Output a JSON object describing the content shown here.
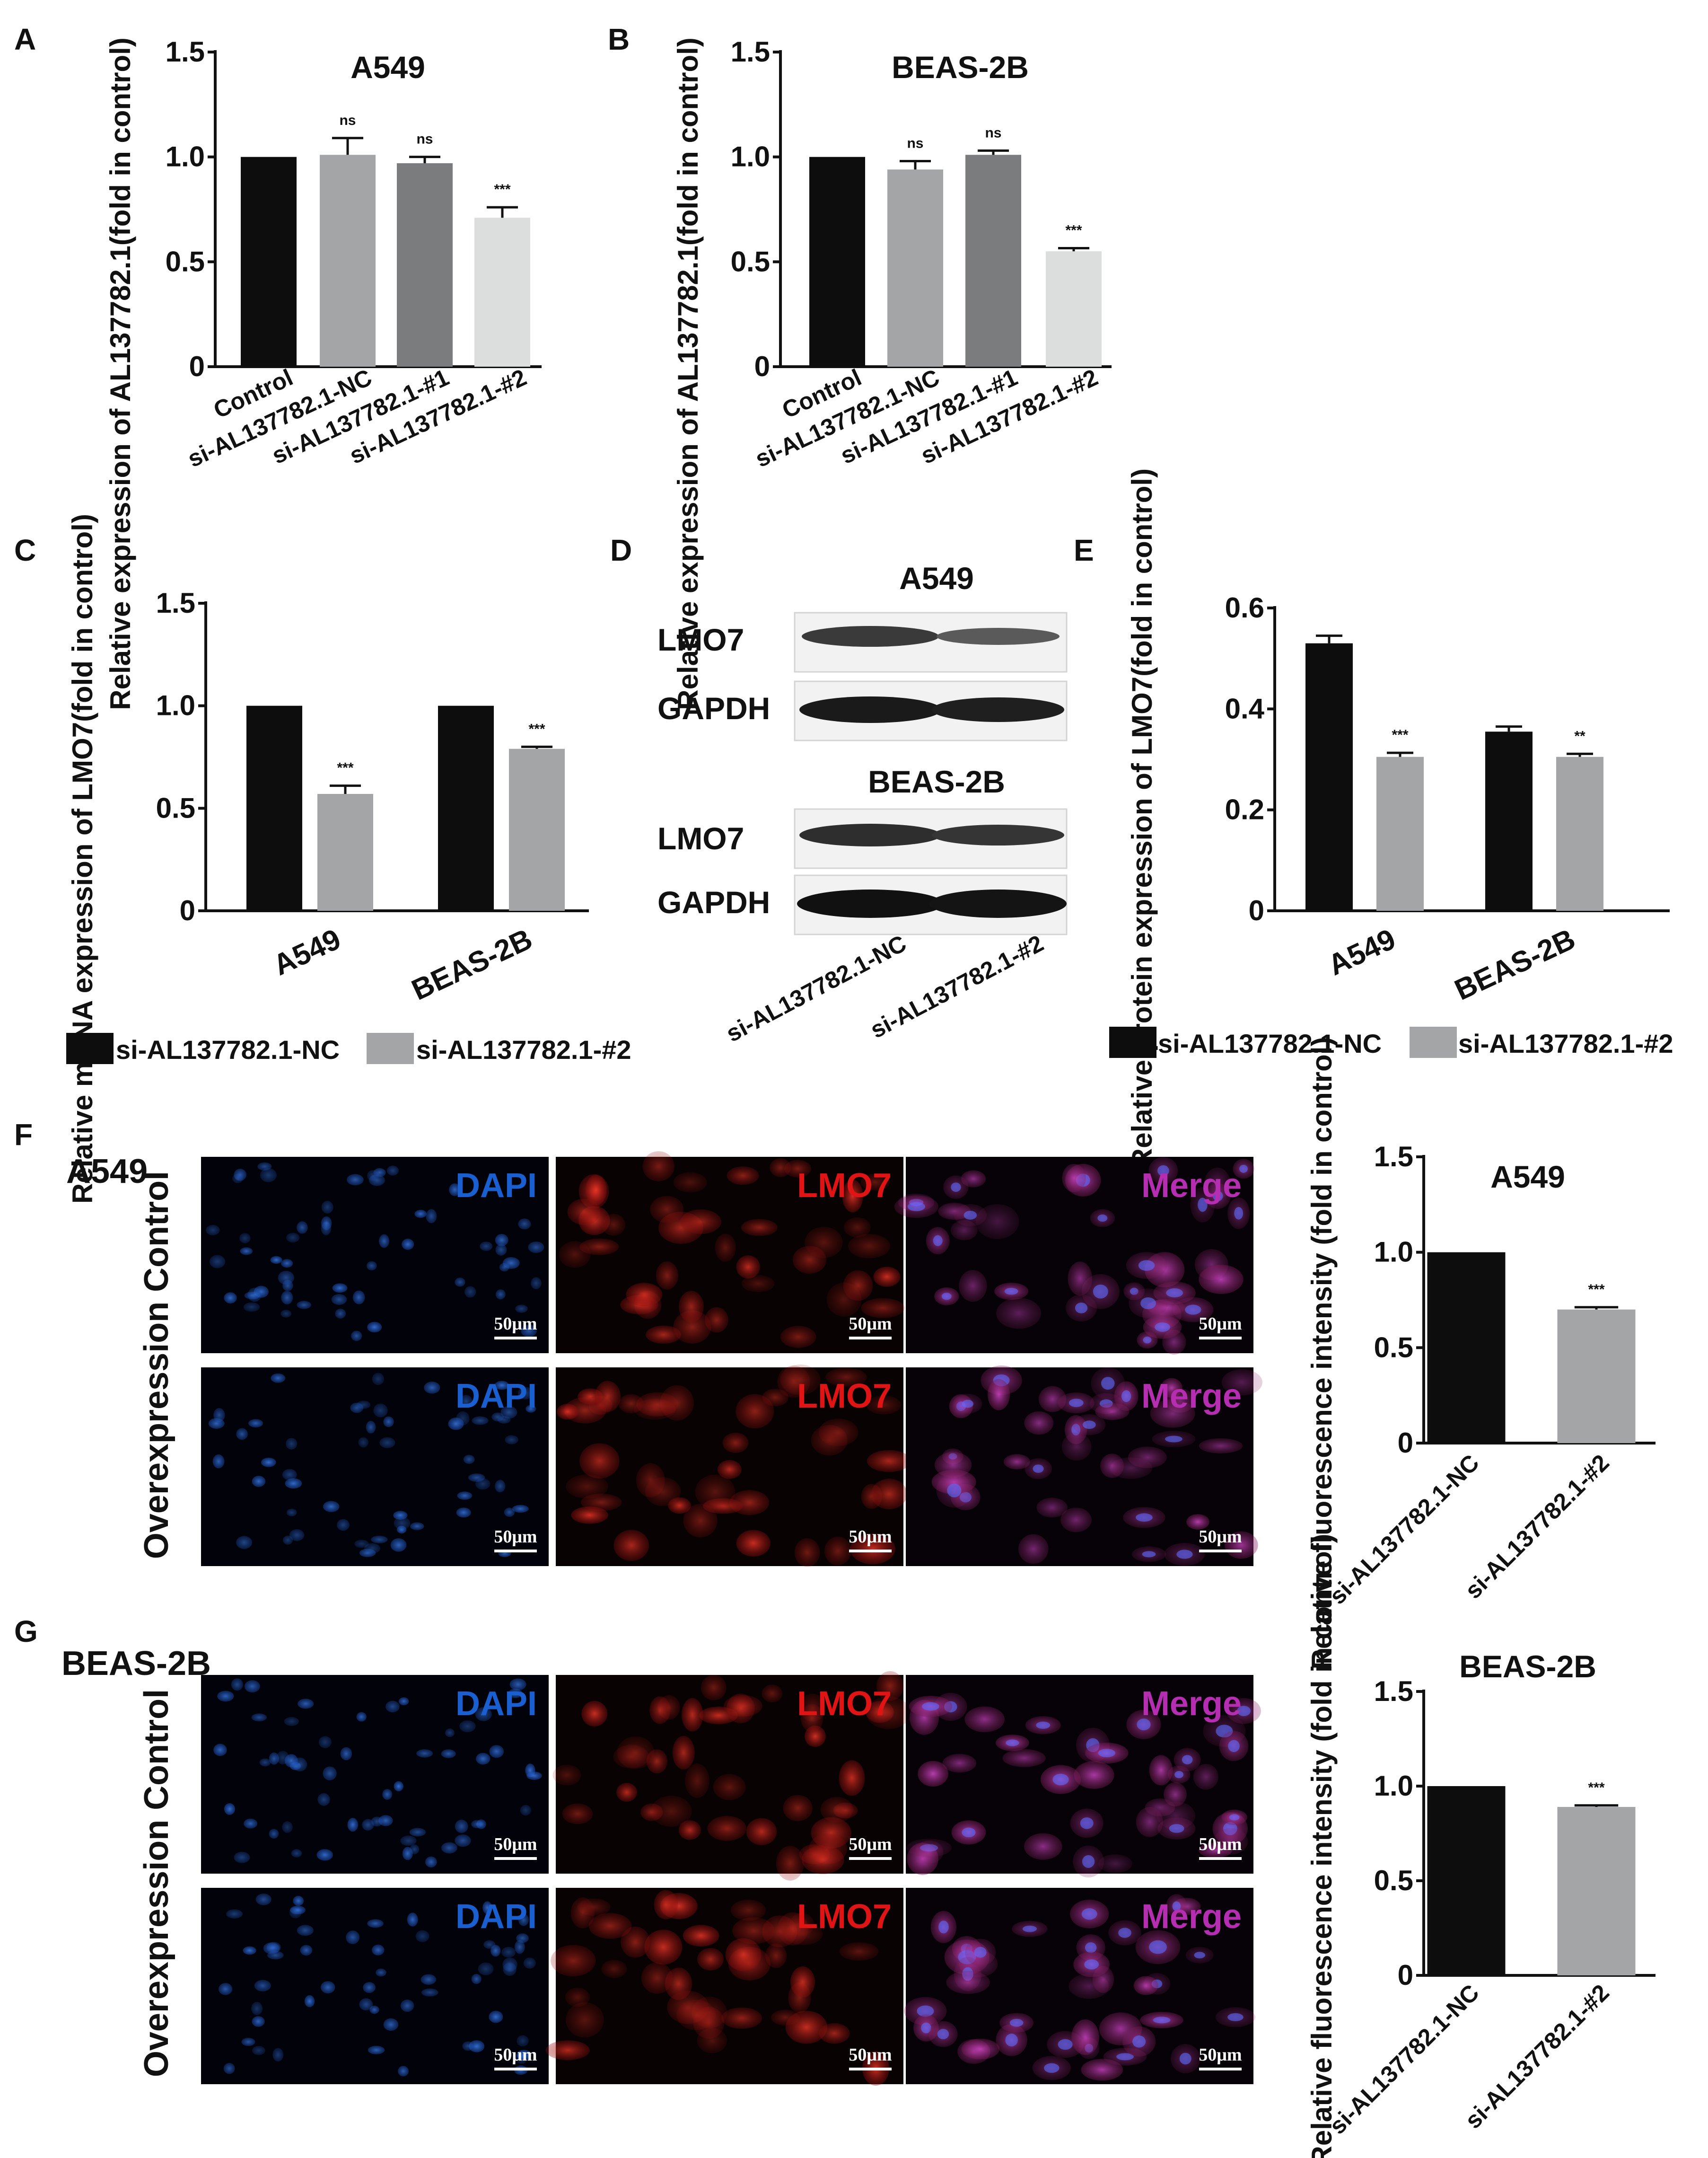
{
  "panel_labels": [
    "A",
    "B",
    "C",
    "D",
    "E",
    "F",
    "G"
  ],
  "colors": {
    "black": "#0d0d0d",
    "grey_dark": "#7a7c7e",
    "grey_mid": "#a3a5a7",
    "grey_light": "#dcdddd",
    "dapi": "#1a5fd0",
    "lmo7": "#e01414",
    "merge": "#b52db0"
  },
  "chart_data": [
    {
      "id": "A",
      "type": "bar",
      "title": "A549",
      "ylabel": "Relative expression of AL137782.1(fold in control)",
      "categories": [
        "Control",
        "si-AL137782.1-NC",
        "si-AL137782.1-#1",
        "si-AL137782.1-#2"
      ],
      "values": [
        1.0,
        1.01,
        0.97,
        0.71
      ],
      "errors": [
        0,
        0.08,
        0.03,
        0.05
      ],
      "significance": [
        "",
        "ns",
        "ns",
        "***"
      ],
      "ylim": [
        0,
        1.5
      ],
      "yticks": [
        "0",
        "0.5",
        "1.0",
        "1.5"
      ]
    },
    {
      "id": "B",
      "type": "bar",
      "title": "BEAS-2B",
      "ylabel": "Relative expression of AL137782.1(fold in control)",
      "categories": [
        "Control",
        "si-AL137782.1-NC",
        "si-AL137782.1-#1",
        "si-AL137782.1-#2"
      ],
      "values": [
        1.0,
        0.94,
        1.01,
        0.55
      ],
      "errors": [
        0,
        0.04,
        0.02,
        0.015
      ],
      "significance": [
        "",
        "ns",
        "ns",
        "***"
      ],
      "ylim": [
        0,
        1.5
      ],
      "yticks": [
        "0",
        "0.5",
        "1.0",
        "1.5"
      ]
    },
    {
      "id": "C",
      "type": "bar",
      "ylabel": "Relative mRNA expression of LMO7(fold in control)",
      "categories": [
        "A549",
        "BEAS-2B"
      ],
      "series": [
        {
          "name": "si-AL137782.1-NC",
          "values": [
            1.0,
            1.0
          ],
          "errors": [
            0,
            0
          ]
        },
        {
          "name": "si-AL137782.1-#2",
          "values": [
            0.57,
            0.79
          ],
          "errors": [
            0.04,
            0.01
          ]
        }
      ],
      "significance": [
        "***",
        "***"
      ],
      "ylim": [
        0,
        1.5
      ],
      "yticks": [
        "0",
        "0.5",
        "1.0",
        "1.5"
      ]
    },
    {
      "id": "E",
      "type": "bar",
      "ylabel": "Relative protein expression of LMO7(fold in control)",
      "categories": [
        "A549",
        "BEAS-2B"
      ],
      "series": [
        {
          "name": "si-AL137782.1-NC",
          "values": [
            0.53,
            0.355
          ],
          "errors": [
            0.015,
            0.01
          ]
        },
        {
          "name": "si-AL137782.1-#2",
          "values": [
            0.305,
            0.305
          ],
          "errors": [
            0.008,
            0.006
          ]
        }
      ],
      "significance": [
        "***",
        "**"
      ],
      "ylim": [
        0,
        0.6
      ],
      "yticks": [
        "0",
        "0.2",
        "0.4",
        "0.6"
      ]
    },
    {
      "id": "F",
      "type": "bar",
      "title": "A549",
      "ylabel": "Relative fluorescence intensity (fold in control)",
      "categories": [
        "si-AL137782.1-NC",
        "si-AL137782.1-#2"
      ],
      "values": [
        1.0,
        0.7
      ],
      "errors": [
        0,
        0.012
      ],
      "significance": [
        "",
        "***"
      ],
      "ylim": [
        0,
        1.5
      ],
      "yticks": [
        "0",
        "0.5",
        "1.0",
        "1.5"
      ]
    },
    {
      "id": "G",
      "type": "bar",
      "title": "BEAS-2B",
      "ylabel": "Relative fluorescence intensity (fold in control)",
      "categories": [
        "si-AL137782.1-NC",
        "si-AL137782.1-#2"
      ],
      "values": [
        1.0,
        0.89
      ],
      "errors": [
        0,
        0.008
      ],
      "significance": [
        "",
        "***"
      ],
      "ylim": [
        0,
        1.5
      ],
      "yticks": [
        "0",
        "0.5",
        "1.0",
        "1.5"
      ]
    }
  ],
  "western": {
    "blocks": [
      {
        "cell": "A549",
        "rows": [
          "LMO7",
          "GAPDH"
        ]
      },
      {
        "cell": "BEAS-2B",
        "rows": [
          "LMO7",
          "GAPDH"
        ]
      }
    ],
    "lanes": [
      "si-AL137782.1-NC",
      "si-AL137782.1-#2"
    ]
  },
  "legend": {
    "nc": "si-AL137782.1-NC",
    "kd": "si-AL137782.1-#2"
  },
  "microscopy": {
    "F_cell": "A549",
    "G_cell": "BEAS-2B",
    "row_axis_label": "Overexpression Control",
    "channels": [
      "DAPI",
      "LMO7",
      "Merge"
    ],
    "scalebar": "50μm"
  }
}
